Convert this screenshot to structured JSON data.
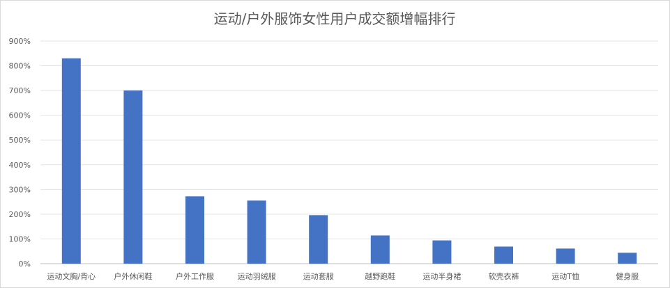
{
  "chart_data": {
    "type": "bar",
    "title": "运动/户外服饰女性用户成交额增幅排行",
    "categories": [
      "运动文胸/背心",
      "户外休闲鞋",
      "户外工作服",
      "运动羽绒服",
      "运动套服",
      "越野跑鞋",
      "运动半身裙",
      "软壳衣裤",
      "运动T恤",
      "健身服"
    ],
    "values": [
      830,
      700,
      272,
      255,
      196,
      114,
      94,
      69,
      61,
      44
    ],
    "value_unit": "%",
    "ylim": [
      0,
      900
    ],
    "yticks": [
      "0%",
      "100%",
      "200%",
      "300%",
      "400%",
      "500%",
      "600%",
      "700%",
      "800%",
      "900%"
    ],
    "grid": true,
    "legend": "none",
    "bar_color": "#4472c4"
  }
}
